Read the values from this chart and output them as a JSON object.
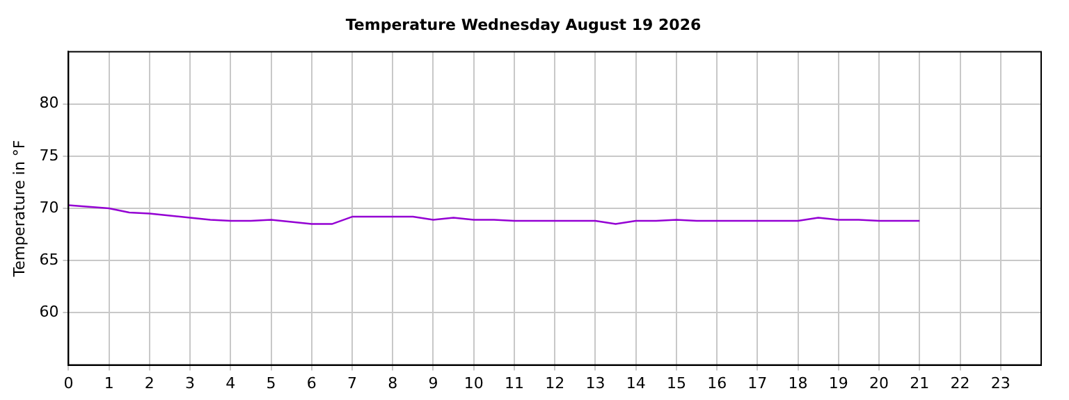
{
  "chart_data": {
    "type": "line",
    "title": "Temperature Wednesday August 19 2026",
    "ylabel": "Temperature in °F",
    "x": [
      0,
      1,
      1.5,
      2,
      2.5,
      3,
      3.5,
      4,
      4.5,
      5,
      5.5,
      6,
      6.5,
      7,
      7.5,
      8,
      8.5,
      9,
      9.5,
      10,
      10.5,
      11,
      11.5,
      12,
      12.5,
      13,
      13.5,
      14,
      14.5,
      15,
      15.5,
      16,
      16.5,
      17,
      17.5,
      18,
      18.5,
      19,
      19.5,
      20,
      20.5,
      21
    ],
    "series": [
      {
        "color": "#9400d3",
        "values": [
          70.3,
          70.0,
          69.6,
          69.5,
          69.3,
          69.1,
          68.9,
          68.8,
          68.8,
          68.9,
          68.7,
          68.5,
          68.5,
          69.2,
          69.2,
          69.2,
          69.2,
          68.9,
          69.1,
          68.9,
          68.9,
          68.8,
          68.8,
          68.8,
          68.8,
          68.8,
          68.5,
          68.8,
          68.8,
          68.9,
          68.8,
          68.8,
          68.8,
          68.8,
          68.8,
          68.8,
          69.1,
          68.9,
          68.9,
          68.8,
          68.8,
          68.8
        ]
      }
    ],
    "xlim": [
      0,
      24
    ],
    "xticks": [
      0,
      1,
      2,
      3,
      4,
      5,
      6,
      7,
      8,
      9,
      10,
      11,
      12,
      13,
      14,
      15,
      16,
      17,
      18,
      19,
      20,
      21,
      22,
      23
    ],
    "ylim": [
      55,
      85
    ],
    "yticks": [
      60,
      65,
      70,
      75,
      80
    ],
    "grid": true,
    "legend": false
  }
}
